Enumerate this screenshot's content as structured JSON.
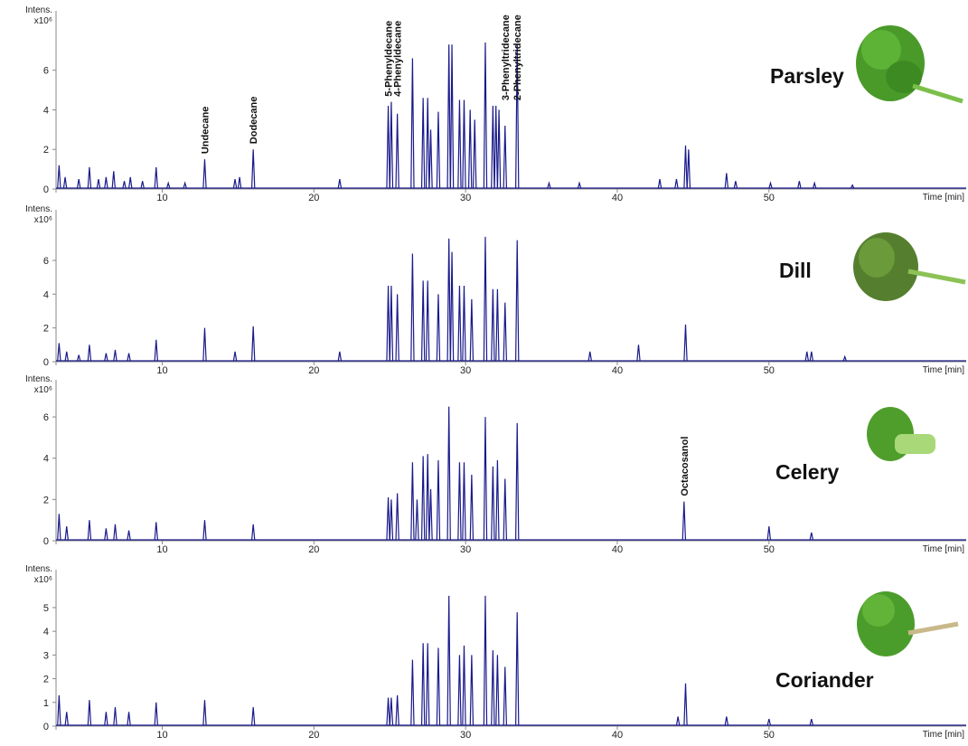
{
  "chart_data": [
    {
      "type": "spectrum",
      "label": "Parsley",
      "y_label": "Intens.",
      "y_unit": "x10⁶",
      "x_label": "Time [min]",
      "color": "#1a1a8c",
      "xlim": [
        3,
        63
      ],
      "xticks": [
        10,
        20,
        30,
        40,
        50
      ],
      "ylim": [
        0,
        9
      ],
      "yticks": [
        0,
        2,
        4,
        6
      ],
      "x": [
        3.2,
        3.6,
        4.5,
        5.2,
        5.8,
        6.3,
        6.8,
        7.5,
        7.9,
        8.7,
        9.6,
        10.4,
        11.5,
        12.8,
        14.8,
        15.1,
        16.0,
        21.7,
        24.9,
        25.1,
        25.5,
        26.5,
        27.2,
        27.5,
        27.7,
        28.2,
        28.9,
        29.1,
        29.6,
        29.9,
        30.3,
        30.6,
        31.3,
        31.8,
        32.0,
        32.2,
        32.6,
        33.4,
        35.5,
        37.5,
        42.8,
        43.9,
        44.5,
        44.7,
        47.2,
        47.8,
        50.1,
        52.0,
        53.0,
        55.5
      ],
      "values": [
        1.2,
        0.6,
        0.5,
        1.1,
        0.5,
        0.6,
        0.9,
        0.4,
        0.6,
        0.4,
        1.1,
        0.3,
        0.3,
        1.5,
        0.5,
        0.6,
        2.0,
        0.5,
        4.2,
        4.4,
        3.8,
        6.6,
        4.6,
        4.6,
        3.0,
        3.9,
        7.3,
        7.3,
        4.5,
        4.5,
        4.0,
        3.5,
        7.4,
        4.2,
        4.2,
        4.0,
        3.2,
        7.3,
        0.3,
        0.3,
        0.5,
        0.5,
        2.2,
        2.0,
        0.8,
        0.4,
        0.3,
        0.4,
        0.3,
        0.2
      ],
      "annotations": [
        {
          "text": "Undecane",
          "x": 12.8,
          "y": 1.5
        },
        {
          "text": "Dodecane",
          "x": 16.0,
          "y": 2.0
        },
        {
          "text": "5-Phenyldecane",
          "x": 24.9,
          "y": 4.4
        },
        {
          "text": "4-Phenyldecane",
          "x": 25.5,
          "y": 4.4
        },
        {
          "text": "3-Phenyltridecane",
          "x": 32.6,
          "y": 4.2
        },
        {
          "text": "2-Phenyltridecane",
          "x": 33.4,
          "y": 4.2
        }
      ]
    },
    {
      "type": "spectrum",
      "label": "Dill",
      "y_label": "Intens.",
      "y_unit": "x10⁶",
      "x_label": "Time [min]",
      "color": "#1a1a8c",
      "xlim": [
        3,
        63
      ],
      "xticks": [
        10,
        20,
        30,
        40,
        50
      ],
      "ylim": [
        0,
        9
      ],
      "yticks": [
        0,
        2,
        4,
        6
      ],
      "x": [
        3.2,
        3.7,
        4.5,
        5.2,
        6.3,
        6.9,
        7.8,
        9.6,
        12.8,
        14.8,
        16.0,
        21.7,
        24.9,
        25.1,
        25.5,
        26.5,
        27.2,
        27.5,
        28.2,
        28.9,
        29.1,
        29.6,
        29.9,
        30.4,
        31.3,
        31.8,
        32.1,
        32.6,
        33.4,
        38.2,
        41.4,
        44.5,
        52.5,
        52.8,
        55.0
      ],
      "values": [
        1.1,
        0.6,
        0.4,
        1.0,
        0.5,
        0.7,
        0.5,
        1.3,
        2.0,
        0.6,
        2.1,
        0.6,
        4.5,
        4.5,
        4.0,
        6.4,
        4.8,
        4.8,
        4.0,
        7.3,
        6.5,
        4.5,
        4.5,
        3.7,
        7.4,
        4.3,
        4.3,
        3.5,
        7.2,
        0.6,
        1.0,
        2.2,
        0.6,
        0.6,
        0.3
      ]
    },
    {
      "type": "spectrum",
      "label": "Celery",
      "y_label": "Intens.",
      "y_unit": "x10⁶",
      "x_label": "Time [min]",
      "color": "#1a1a8c",
      "xlim": [
        3,
        63
      ],
      "xticks": [
        10,
        20,
        30,
        40,
        50
      ],
      "ylim": [
        0,
        7.8
      ],
      "yticks": [
        0,
        2,
        4,
        6
      ],
      "x": [
        3.2,
        3.7,
        5.2,
        6.3,
        6.9,
        7.8,
        9.6,
        12.8,
        16.0,
        24.9,
        25.1,
        25.5,
        26.5,
        26.8,
        27.2,
        27.5,
        27.7,
        28.2,
        28.9,
        29.6,
        29.9,
        30.4,
        31.3,
        31.8,
        32.1,
        32.6,
        33.4,
        44.4,
        50.0,
        52.8
      ],
      "values": [
        1.3,
        0.7,
        1.0,
        0.6,
        0.8,
        0.5,
        0.9,
        1.0,
        0.8,
        2.1,
        2.0,
        2.3,
        3.8,
        2.0,
        4.1,
        4.2,
        2.5,
        3.9,
        6.5,
        3.8,
        3.8,
        3.2,
        6.0,
        3.6,
        3.9,
        3.0,
        5.7,
        1.9,
        0.7,
        0.4
      ],
      "annotations": [
        {
          "text": "Octacosanol",
          "x": 44.4,
          "y": 1.9
        }
      ]
    },
    {
      "type": "spectrum",
      "label": "Coriander",
      "y_label": "Intens.",
      "y_unit": "x10⁶",
      "x_label": "Time [min]",
      "color": "#1a1a8c",
      "xlim": [
        3,
        63
      ],
      "xticks": [
        10,
        20,
        30,
        40,
        50
      ],
      "ylim": [
        0,
        6.6
      ],
      "yticks": [
        0,
        1,
        2,
        3,
        4,
        5
      ],
      "x": [
        3.2,
        3.7,
        5.2,
        6.3,
        6.9,
        7.8,
        9.6,
        12.8,
        16.0,
        24.9,
        25.1,
        25.5,
        26.5,
        27.2,
        27.5,
        28.2,
        28.9,
        29.6,
        29.9,
        30.4,
        31.3,
        31.8,
        32.1,
        32.6,
        33.4,
        44.0,
        44.5,
        47.2,
        50.0,
        52.8
      ],
      "values": [
        1.3,
        0.6,
        1.1,
        0.6,
        0.8,
        0.6,
        1.0,
        1.1,
        0.8,
        1.2,
        1.2,
        1.3,
        2.8,
        3.5,
        3.5,
        3.3,
        5.5,
        3.0,
        3.4,
        3.0,
        5.5,
        3.2,
        3.0,
        2.5,
        4.8,
        0.4,
        1.8,
        0.4,
        0.3,
        0.3
      ]
    }
  ]
}
